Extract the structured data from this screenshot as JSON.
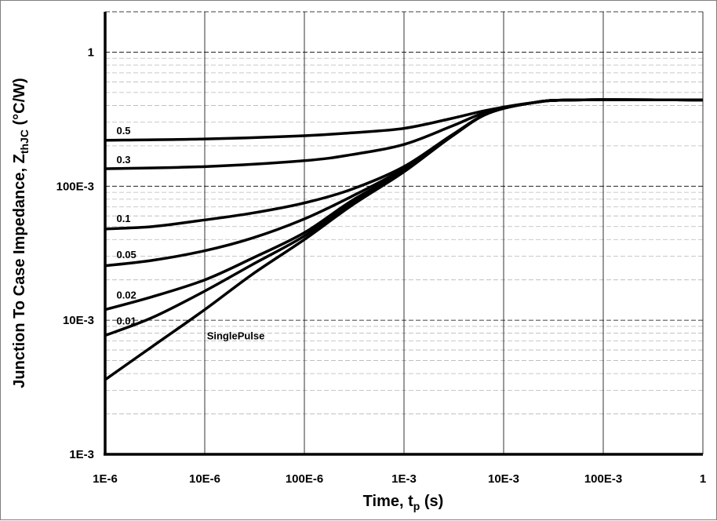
{
  "chart_data": {
    "type": "line",
    "title": "",
    "xlabel_main": "Time, t",
    "xlabel_sub": "p",
    "xlabel_tail": " (s)",
    "ylabel_main": "Junction To Case Impedance, Z",
    "ylabel_sub": "thJC",
    "ylabel_tail": " (°C/W)",
    "x_scale": "log",
    "y_scale": "log",
    "xlim": [
      1e-06,
      1
    ],
    "ylim": [
      0.001,
      2
    ],
    "x_ticks": [
      {
        "value": 1e-06,
        "label": "1E-6"
      },
      {
        "value": 1e-05,
        "label": "10E-6"
      },
      {
        "value": 0.0001,
        "label": "100E-6"
      },
      {
        "value": 0.001,
        "label": "1E-3"
      },
      {
        "value": 0.01,
        "label": "10E-3"
      },
      {
        "value": 0.1,
        "label": "100E-3"
      },
      {
        "value": 1,
        "label": "1"
      }
    ],
    "y_ticks": [
      {
        "value": 0.001,
        "label": "1E-3"
      },
      {
        "value": 0.01,
        "label": "10E-3"
      },
      {
        "value": 0.1,
        "label": "100E-3"
      },
      {
        "value": 1,
        "label": "1"
      }
    ],
    "grid": true,
    "series": [
      {
        "name": "0.5",
        "label_at": [
          1.3e-06,
          0.245
        ],
        "x": [
          1e-06,
          1e-05,
          0.0001,
          0.0003,
          0.001,
          0.003,
          0.007,
          0.02,
          0.05,
          1
        ],
        "y": [
          0.22,
          0.225,
          0.238,
          0.25,
          0.27,
          0.32,
          0.37,
          0.42,
          0.44,
          0.44
        ]
      },
      {
        "name": "0.3",
        "label_at": [
          1.3e-06,
          0.148
        ],
        "x": [
          1e-06,
          1e-05,
          0.0001,
          0.0003,
          0.001,
          0.003,
          0.007,
          0.02,
          0.05,
          1
        ],
        "y": [
          0.135,
          0.14,
          0.155,
          0.172,
          0.205,
          0.28,
          0.36,
          0.42,
          0.44,
          0.44
        ]
      },
      {
        "name": "0.1",
        "label_at": [
          1.3e-06,
          0.054
        ],
        "x": [
          1e-06,
          3e-06,
          1e-05,
          3e-05,
          0.0001,
          0.0003,
          0.001,
          0.003,
          0.007,
          0.02,
          0.05,
          1
        ],
        "y": [
          0.048,
          0.05,
          0.056,
          0.063,
          0.075,
          0.095,
          0.14,
          0.24,
          0.35,
          0.42,
          0.44,
          0.44
        ]
      },
      {
        "name": "0.05",
        "label_at": [
          1.3e-06,
          0.029
        ],
        "x": [
          1e-06,
          3e-06,
          1e-05,
          3e-05,
          0.0001,
          0.0003,
          0.001,
          0.003,
          0.007,
          0.02,
          0.05,
          1
        ],
        "y": [
          0.0255,
          0.028,
          0.033,
          0.041,
          0.057,
          0.084,
          0.135,
          0.235,
          0.35,
          0.42,
          0.44,
          0.44
        ]
      },
      {
        "name": "0.02",
        "label_at": [
          1.3e-06,
          0.0145
        ],
        "x": [
          1e-06,
          3e-06,
          1e-05,
          3e-05,
          0.0001,
          0.0003,
          0.001,
          0.003,
          0.007,
          0.02,
          0.05,
          1
        ],
        "y": [
          0.012,
          0.015,
          0.02,
          0.029,
          0.045,
          0.078,
          0.13,
          0.235,
          0.35,
          0.42,
          0.44,
          0.44
        ]
      },
      {
        "name": "0.01",
        "label_at": [
          1.3e-06,
          0.0093
        ],
        "x": [
          1e-06,
          3e-06,
          1e-05,
          3e-05,
          0.0001,
          0.0003,
          0.001,
          0.003,
          0.007,
          0.02,
          0.05,
          1
        ],
        "y": [
          0.0077,
          0.0105,
          0.0165,
          0.026,
          0.0425,
          0.075,
          0.13,
          0.235,
          0.35,
          0.42,
          0.44,
          0.44
        ]
      },
      {
        "name": "SinglePulse",
        "label_at": [
          1.05e-05,
          0.0072
        ],
        "x": [
          1e-06,
          3e-06,
          1e-05,
          3e-05,
          0.0001,
          0.0003,
          0.001,
          0.003,
          0.007,
          0.02,
          0.05,
          1
        ],
        "y": [
          0.0036,
          0.0064,
          0.012,
          0.022,
          0.04,
          0.072,
          0.128,
          0.235,
          0.35,
          0.42,
          0.44,
          0.44
        ]
      }
    ]
  }
}
